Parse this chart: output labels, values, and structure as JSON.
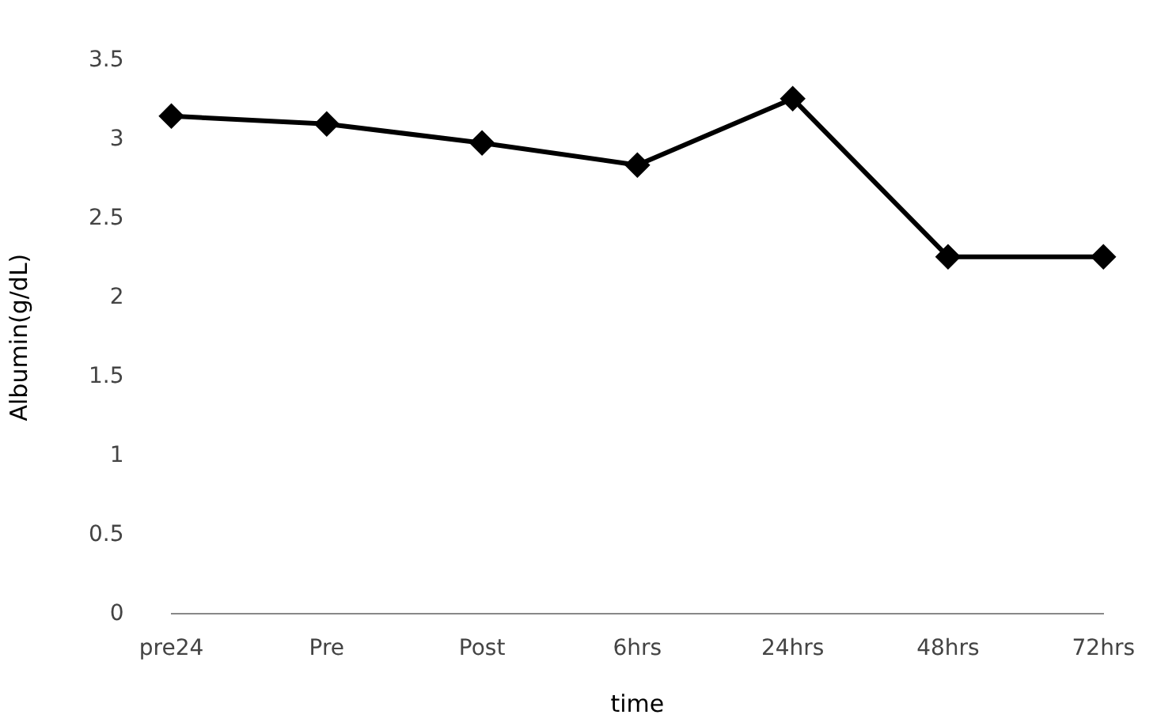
{
  "chart_data": {
    "type": "line",
    "xlabel": "time",
    "ylabel": "Albumin(g/dL)",
    "categories": [
      "pre24",
      "Pre",
      "Post",
      "6hrs",
      "24hrs",
      "48hrs",
      "72hrs"
    ],
    "values": [
      3.15,
      3.1,
      2.98,
      2.84,
      3.26,
      2.26,
      2.26
    ],
    "color": "#000000",
    "marker": "diamond",
    "line_style": "solid",
    "ylim": [
      0,
      3.5
    ],
    "yticks": [
      0,
      0.5,
      1,
      1.5,
      2,
      2.5,
      3,
      3.5
    ],
    "grid": false,
    "legend": false
  }
}
